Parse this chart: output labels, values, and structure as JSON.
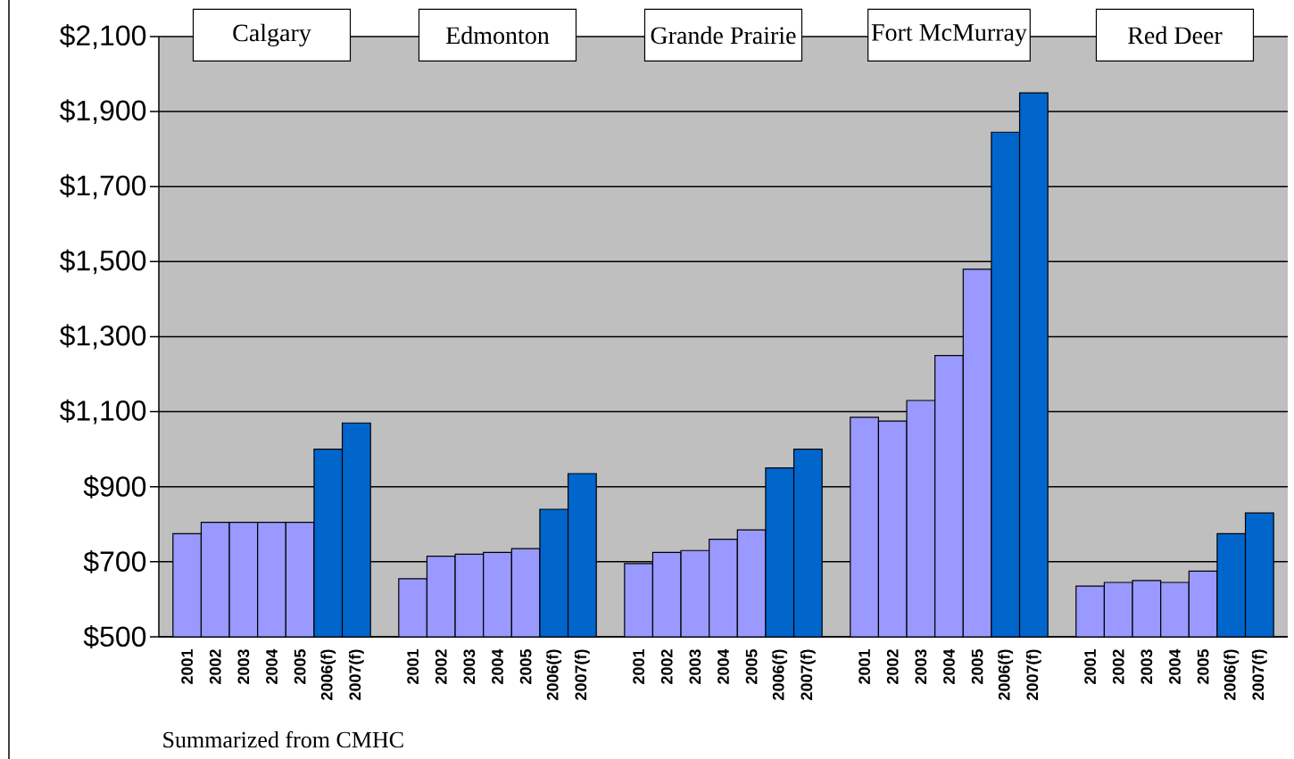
{
  "chart_data": {
    "type": "bar",
    "categories": [
      "2001",
      "2002",
      "2003",
      "2004",
      "2005",
      "2006(f)",
      "2007(f)",
      null,
      "2001",
      "2002",
      "2003",
      "2004",
      "2005",
      "2006(f)",
      "2007(f)",
      null,
      "2001",
      "2002",
      "2003",
      "2004",
      "2005",
      "2006(f)",
      "2007(f)",
      null,
      "2001",
      "2002",
      "2003",
      "2004",
      "2005",
      "2006(f)",
      "2007(f)",
      null,
      "2001",
      "2002",
      "2003",
      "2004",
      "2005",
      "2006(f)",
      "2007(f)"
    ],
    "values": [
      775,
      805,
      805,
      805,
      805,
      1000,
      1070,
      null,
      655,
      715,
      720,
      725,
      735,
      840,
      935,
      null,
      695,
      725,
      730,
      760,
      785,
      950,
      1000,
      null,
      1085,
      1075,
      1130,
      1250,
      1480,
      1845,
      1950,
      null,
      635,
      645,
      650,
      645,
      675,
      775,
      830
    ],
    "colors": [
      "#9999ff",
      "#9999ff",
      "#9999ff",
      "#9999ff",
      "#9999ff",
      "#0066cc",
      "#0066cc",
      null,
      "#9999ff",
      "#9999ff",
      "#9999ff",
      "#9999ff",
      "#9999ff",
      "#0066cc",
      "#0066cc",
      null,
      "#9999ff",
      "#9999ff",
      "#9999ff",
      "#9999ff",
      "#9999ff",
      "#0066cc",
      "#0066cc",
      null,
      "#9999ff",
      "#9999ff",
      "#9999ff",
      "#9999ff",
      "#9999ff",
      "#0066cc",
      "#0066cc",
      null,
      "#9999ff",
      "#9999ff",
      "#9999ff",
      "#9999ff",
      "#9999ff",
      "#0066cc",
      "#0066cc"
    ],
    "ylim": [
      500,
      2100
    ],
    "yticks": [
      {
        "value": 500,
        "label": "$500"
      },
      {
        "value": 700,
        "label": "$700"
      },
      {
        "value": 900,
        "label": "$900"
      },
      {
        "value": 1100,
        "label": "$1,100"
      },
      {
        "value": 1300,
        "label": "$1,300"
      },
      {
        "value": 1500,
        "label": "$1,500"
      },
      {
        "value": 1700,
        "label": "$1,700"
      },
      {
        "value": 1900,
        "label": "$1,900"
      },
      {
        "value": 2100,
        "label": "$2,100"
      }
    ],
    "grid": "y",
    "annotations": [
      "Calgary",
      "Edmonton",
      "Grande Prairie",
      "Fort McMurray",
      "Red Deer",
      "Summarized from CMHC"
    ]
  }
}
